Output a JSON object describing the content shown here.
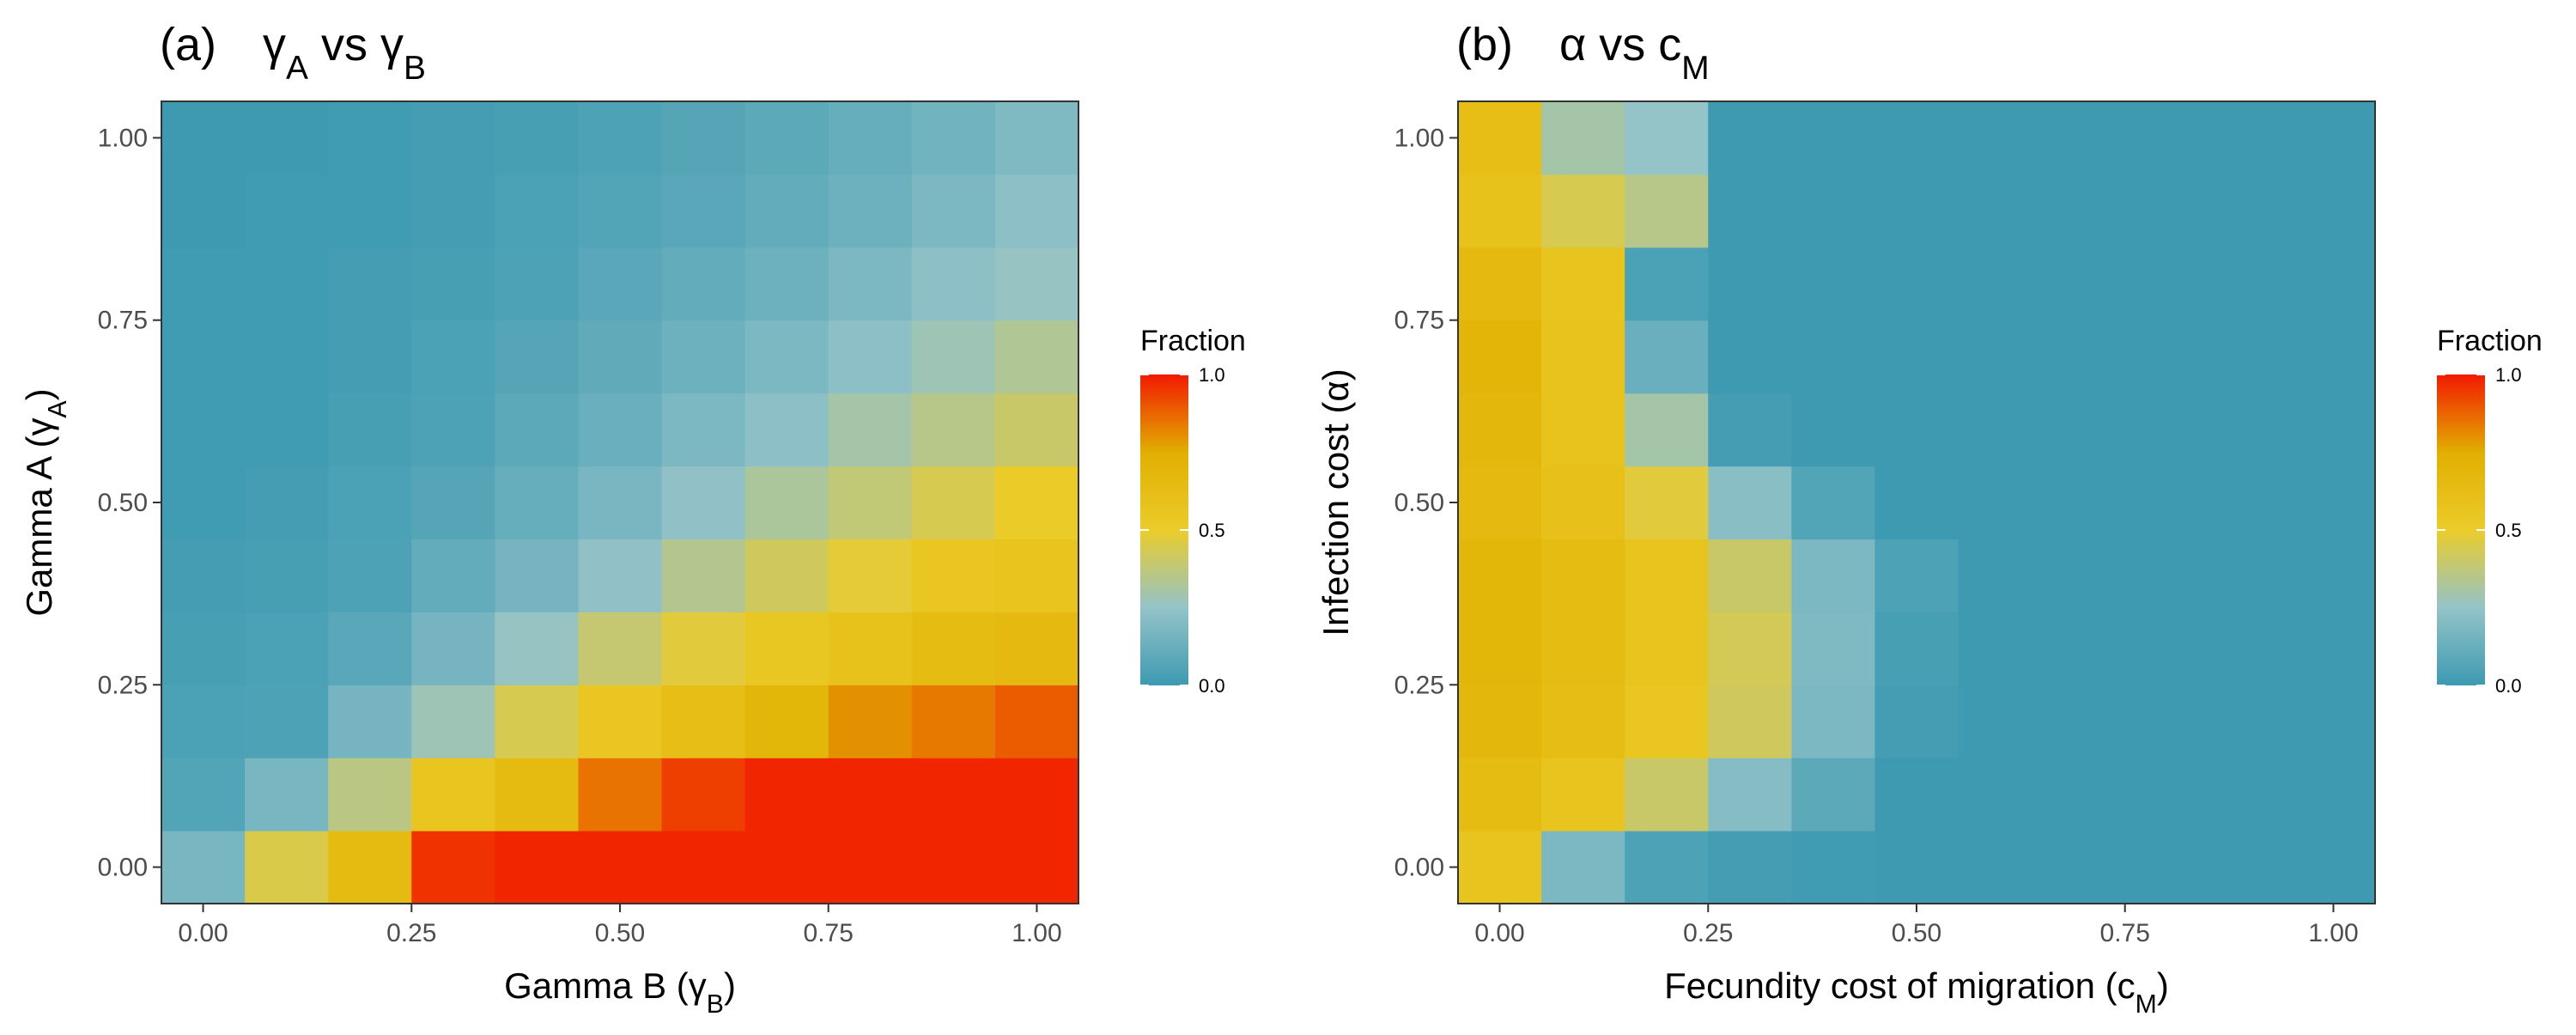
{
  "legend": {
    "title": "Fraction",
    "ticks": [
      "0.0",
      "0.5",
      "1.0"
    ],
    "tick_values": [
      0,
      0.5,
      1
    ],
    "colors": [
      "#3d9ab1",
      "#94c3c8",
      "#ebcc2a",
      "#e1af00",
      "#f21a00"
    ],
    "color_stops": [
      0,
      0.25,
      0.5,
      0.75,
      1
    ]
  },
  "chart_data": [
    {
      "type": "heatmap",
      "panel": "(a)",
      "title": {
        "base1": "γ",
        "sub1": "A",
        "mid": " vs ",
        "base2": "γ",
        "sub2": "B"
      },
      "xlabel": {
        "base": "Gamma B (γ",
        "sub": "B",
        "tail": ")"
      },
      "ylabel": {
        "base": "Gamma A (γ",
        "sub": "A",
        "tail": ")"
      },
      "x": [
        0,
        0.1,
        0.2,
        0.3,
        0.4,
        0.5,
        0.6,
        0.7,
        0.8,
        0.9,
        1.0
      ],
      "y": [
        0,
        0.1,
        0.2,
        0.3,
        0.4,
        0.5,
        0.6,
        0.7,
        0.8,
        0.9,
        1.0
      ],
      "x_ticks": [
        "0.00",
        "0.25",
        "0.50",
        "0.75",
        "1.00"
      ],
      "x_tick_values": [
        0,
        0.25,
        0.5,
        0.75,
        1
      ],
      "y_ticks": [
        "0.00",
        "0.25",
        "0.50",
        "0.75",
        "1.00"
      ],
      "y_tick_values": [
        0,
        0.25,
        0.5,
        0.75,
        1
      ],
      "xlim": [
        -0.05,
        1.05
      ],
      "ylim": [
        -0.05,
        1.05
      ],
      "z": [
        [
          0.17,
          0.45,
          0.65,
          0.96,
          0.98,
          0.98,
          0.98,
          0.98,
          0.98,
          0.98,
          0.98
        ],
        [
          0.06,
          0.17,
          0.36,
          0.56,
          0.65,
          0.85,
          0.94,
          0.98,
          0.98,
          0.98,
          0.98
        ],
        [
          0.04,
          0.05,
          0.16,
          0.28,
          0.44,
          0.55,
          0.62,
          0.69,
          0.8,
          0.84,
          0.89
        ],
        [
          0.03,
          0.04,
          0.08,
          0.16,
          0.26,
          0.39,
          0.47,
          0.54,
          0.59,
          0.64,
          0.66
        ],
        [
          0.02,
          0.03,
          0.05,
          0.11,
          0.16,
          0.24,
          0.34,
          0.42,
          0.48,
          0.55,
          0.57
        ],
        [
          0.01,
          0.02,
          0.04,
          0.07,
          0.12,
          0.17,
          0.24,
          0.32,
          0.38,
          0.44,
          0.51
        ],
        [
          0.01,
          0.01,
          0.03,
          0.05,
          0.09,
          0.13,
          0.18,
          0.23,
          0.3,
          0.35,
          0.4
        ],
        [
          0.01,
          0.01,
          0.02,
          0.04,
          0.07,
          0.1,
          0.14,
          0.18,
          0.23,
          0.28,
          0.33
        ],
        [
          0.01,
          0.01,
          0.02,
          0.03,
          0.05,
          0.08,
          0.11,
          0.14,
          0.18,
          0.23,
          0.26
        ],
        [
          0.0,
          0.01,
          0.01,
          0.02,
          0.04,
          0.06,
          0.08,
          0.11,
          0.14,
          0.18,
          0.23
        ],
        [
          0.0,
          0.0,
          0.01,
          0.02,
          0.03,
          0.05,
          0.07,
          0.09,
          0.12,
          0.15,
          0.19
        ]
      ]
    },
    {
      "type": "heatmap",
      "panel": "(b)",
      "title": {
        "base1": "α",
        "mid": " vs ",
        "base2": "c",
        "sub2": "M"
      },
      "xlabel": {
        "base": "Fecundity cost of migration (c",
        "sub": "M",
        "tail": ")"
      },
      "ylabel": {
        "base": "Infection cost (α)",
        "sub": "",
        "tail": ""
      },
      "x": [
        0,
        0.1,
        0.2,
        0.3,
        0.4,
        0.5,
        0.6,
        0.7,
        0.8,
        0.9,
        1.0
      ],
      "y": [
        0,
        0.1,
        0.2,
        0.3,
        0.4,
        0.5,
        0.6,
        0.7,
        0.8,
        0.9,
        1.0
      ],
      "x_ticks": [
        "0.00",
        "0.25",
        "0.50",
        "0.75",
        "1.00"
      ],
      "x_tick_values": [
        0,
        0.25,
        0.5,
        0.75,
        1
      ],
      "y_ticks": [
        "0.00",
        "0.25",
        "0.50",
        "0.75",
        "1.00"
      ],
      "y_tick_values": [
        0,
        0.25,
        0.5,
        0.75,
        1
      ],
      "xlim": [
        -0.05,
        1.05
      ],
      "ylim": [
        -0.05,
        1.05
      ],
      "z": [
        [
          0.57,
          0.18,
          0.05,
          0.02,
          0.01,
          0.0,
          0.0,
          0.0,
          0.0,
          0.0,
          0.0
        ],
        [
          0.64,
          0.57,
          0.4,
          0.21,
          0.09,
          0.0,
          0.0,
          0.0,
          0.0,
          0.0,
          0.0
        ],
        [
          0.68,
          0.63,
          0.55,
          0.42,
          0.18,
          0.02,
          0.0,
          0.0,
          0.0,
          0.0,
          0.0
        ],
        [
          0.69,
          0.64,
          0.57,
          0.43,
          0.19,
          0.03,
          0.0,
          0.0,
          0.0,
          0.0,
          0.0
        ],
        [
          0.69,
          0.64,
          0.57,
          0.4,
          0.18,
          0.05,
          0.0,
          0.0,
          0.0,
          0.0,
          0.0
        ],
        [
          0.66,
          0.6,
          0.47,
          0.22,
          0.06,
          0.0,
          0.0,
          0.0,
          0.0,
          0.0,
          0.0
        ],
        [
          0.68,
          0.58,
          0.3,
          0.02,
          0.0,
          0.0,
          0.0,
          0.0,
          0.0,
          0.0,
          0.0
        ],
        [
          0.7,
          0.58,
          0.13,
          0.0,
          0.0,
          0.0,
          0.0,
          0.0,
          0.0,
          0.0,
          0.0
        ],
        [
          0.66,
          0.57,
          0.04,
          0.0,
          0.0,
          0.0,
          0.0,
          0.0,
          0.0,
          0.0,
          0.0
        ],
        [
          0.59,
          0.44,
          0.35,
          0.0,
          0.0,
          0.0,
          0.0,
          0.0,
          0.0,
          0.0,
          0.0
        ],
        [
          0.62,
          0.3,
          0.25,
          0.0,
          0.0,
          0.0,
          0.0,
          0.0,
          0.0,
          0.0,
          0.0
        ]
      ]
    }
  ]
}
